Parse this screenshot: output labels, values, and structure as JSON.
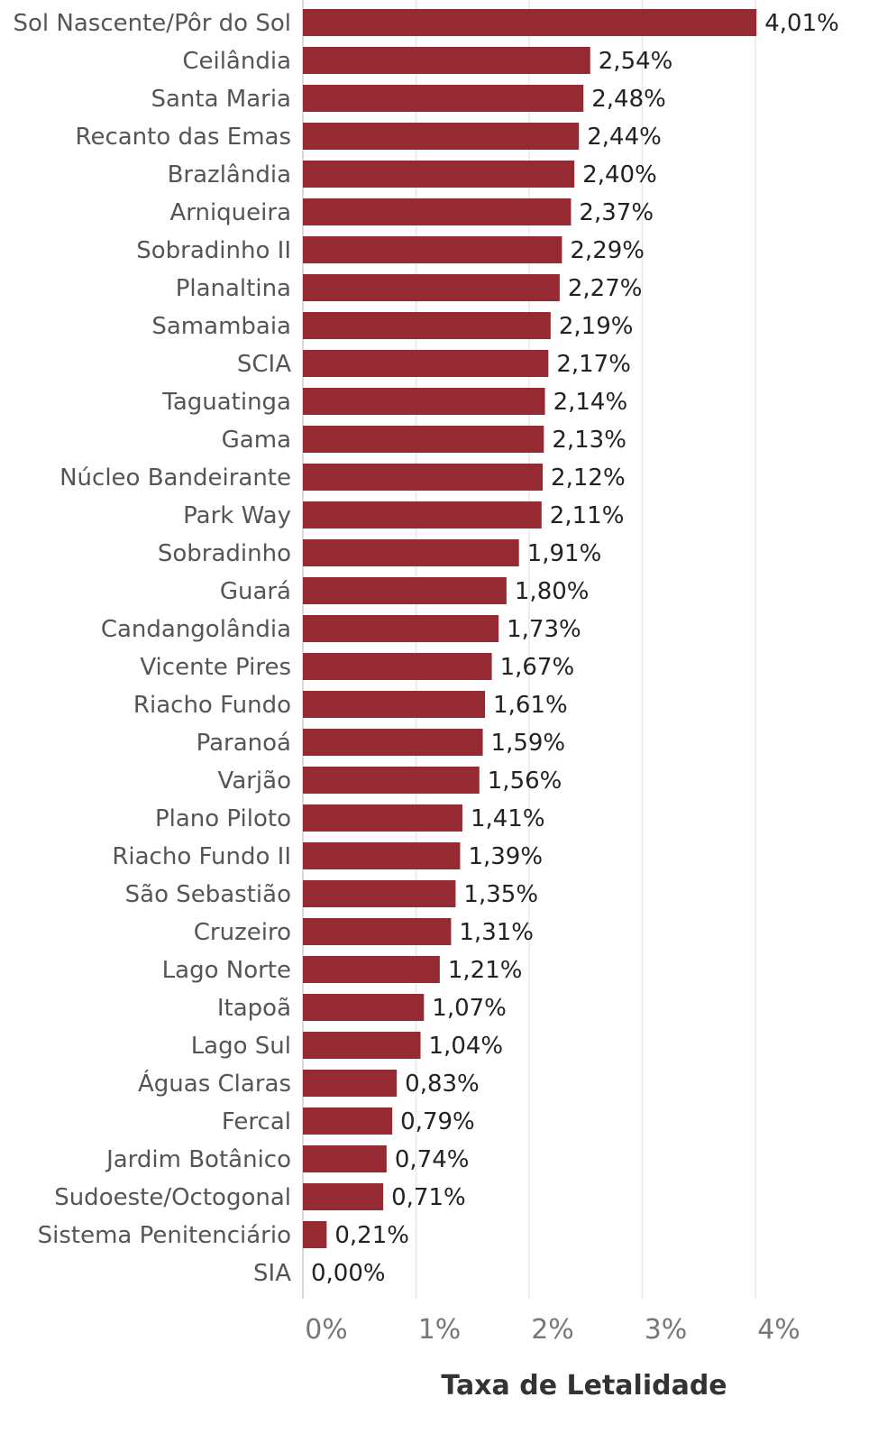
{
  "chart_data": {
    "type": "bar",
    "orientation": "horizontal",
    "categories": [
      "Sol Nascente/Pôr do Sol",
      "Ceilândia",
      "Santa Maria",
      "Recanto das Emas",
      "Brazlândia",
      "Arniqueira",
      "Sobradinho II",
      "Planaltina",
      "Samambaia",
      "SCIA",
      "Taguatinga",
      "Gama",
      "Núcleo Bandeirante",
      "Park Way",
      "Sobradinho",
      "Guará",
      "Candangolândia",
      "Vicente Pires",
      "Riacho Fundo",
      "Paranoá",
      "Varjão",
      "Plano Piloto",
      "Riacho Fundo II",
      "São Sebastião",
      "Cruzeiro",
      "Lago Norte",
      "Itapoã",
      "Lago Sul",
      "Águas Claras",
      "Fercal",
      "Jardim Botânico",
      "Sudoeste/Octogonal",
      "Sistema Penitenciário",
      "SIA"
    ],
    "values": [
      4.01,
      2.54,
      2.48,
      2.44,
      2.4,
      2.37,
      2.29,
      2.27,
      2.19,
      2.17,
      2.14,
      2.13,
      2.12,
      2.11,
      1.91,
      1.8,
      1.73,
      1.67,
      1.61,
      1.59,
      1.56,
      1.41,
      1.39,
      1.35,
      1.31,
      1.21,
      1.07,
      1.04,
      0.83,
      0.79,
      0.74,
      0.71,
      0.21,
      0.0
    ],
    "value_labels": [
      "4,01%",
      "2,54%",
      "2,48%",
      "2,44%",
      "2,40%",
      "2,37%",
      "2,29%",
      "2,27%",
      "2,19%",
      "2,17%",
      "2,14%",
      "2,13%",
      "2,12%",
      "2,11%",
      "1,91%",
      "1,80%",
      "1,73%",
      "1,67%",
      "1,61%",
      "1,59%",
      "1,56%",
      "1,41%",
      "1,39%",
      "1,35%",
      "1,31%",
      "1,21%",
      "1,07%",
      "1,04%",
      "0,83%",
      "0,79%",
      "0,74%",
      "0,71%",
      "0,21%",
      "0,00%"
    ],
    "xticks": [
      0,
      1,
      2,
      3,
      4
    ],
    "xtick_labels": [
      "0%",
      "1%",
      "2%",
      "3%",
      "4%"
    ],
    "xlim": [
      0,
      4.9
    ],
    "xlabel": "Taxa de Letalidade",
    "ylabel": "",
    "title": "",
    "grid": true,
    "bar_color": "#952a32"
  }
}
